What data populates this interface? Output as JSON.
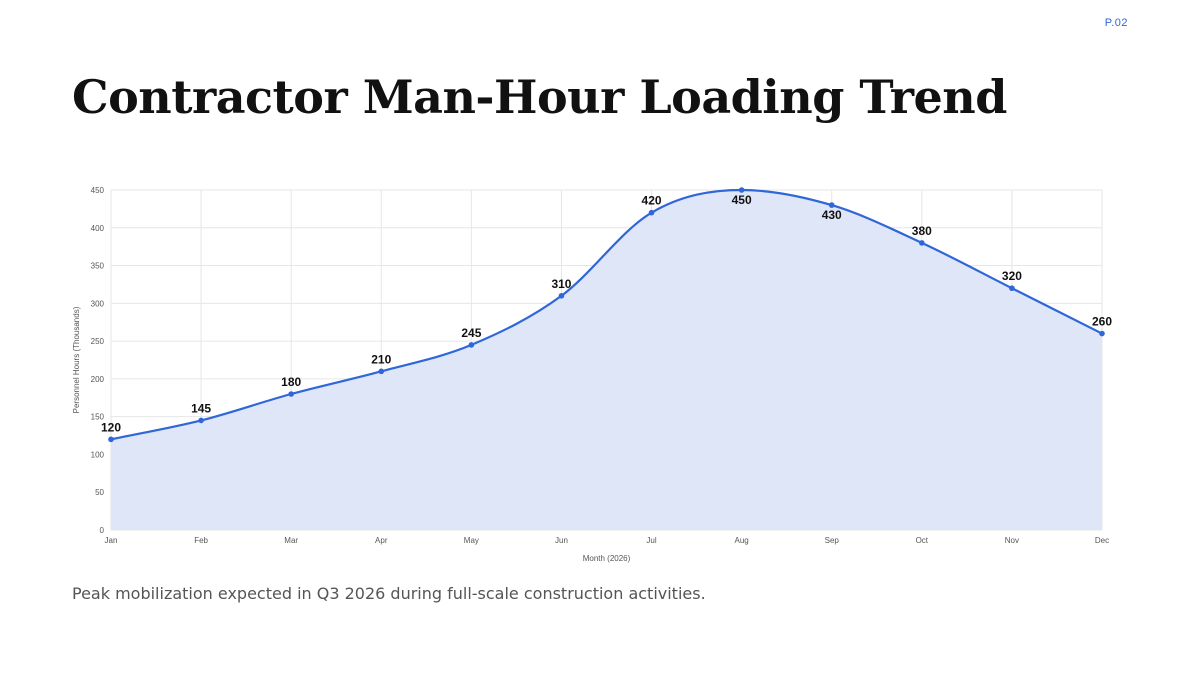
{
  "page": {
    "number": "P.02",
    "title": "Contractor Man-Hour Loading Trend",
    "caption": "Peak mobilization expected in Q3 2026 during full-scale construction activities."
  },
  "colors": {
    "line": "#2f66d8",
    "area": "#dce5f8",
    "grid": "#e6e6e6",
    "text": "#111111",
    "page_number": "#2f66d8"
  },
  "chart_data": {
    "type": "area",
    "categories": [
      "Jan",
      "Feb",
      "Mar",
      "Apr",
      "May",
      "Jun",
      "Jul",
      "Aug",
      "Sep",
      "Oct",
      "Nov",
      "Dec"
    ],
    "values": [
      120,
      145,
      180,
      210,
      245,
      310,
      420,
      450,
      430,
      380,
      320,
      260
    ],
    "xlabel": "Month (2026)",
    "ylabel": "Personnel Hours (Thousands)",
    "ylim": [
      0,
      450
    ],
    "yticks": [
      0,
      50,
      100,
      150,
      200,
      250,
      300,
      350,
      400,
      450
    ],
    "grid": true,
    "smooth": true,
    "data_labels": true,
    "legend": "none"
  }
}
